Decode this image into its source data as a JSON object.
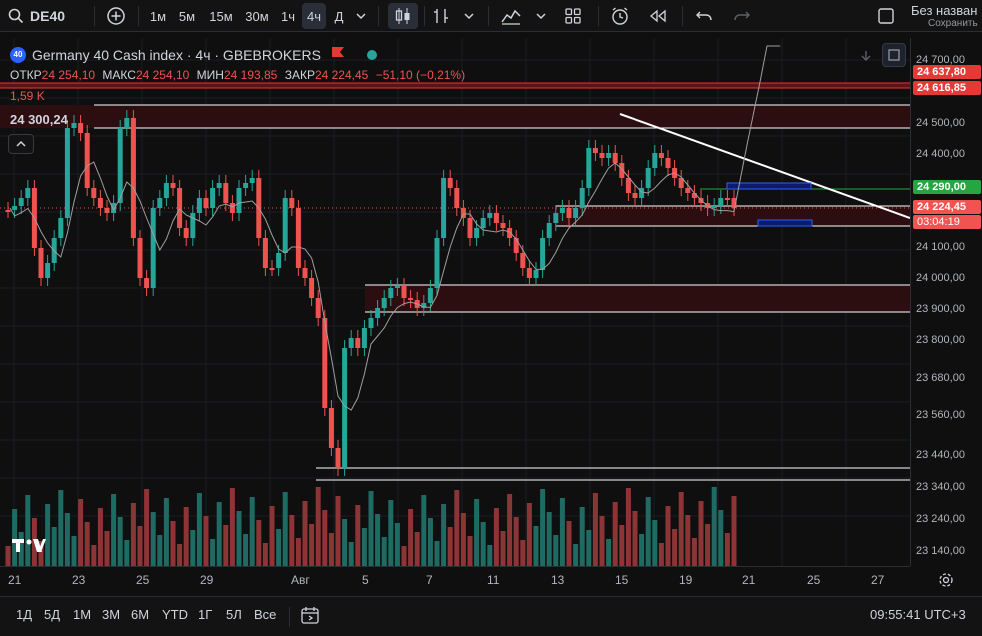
{
  "toolbar": {
    "symbol": "DE40",
    "intervals": [
      "1м",
      "5м",
      "15м",
      "30м",
      "1ч",
      "4ч",
      "Д"
    ],
    "active_interval": "4ч",
    "layout_name": "Без назван",
    "save_label": "Сохранить"
  },
  "legend": {
    "badge": "40",
    "title": "Germany 40 Cash index · 4ч · GBEBROKERS",
    "ohlc": [
      {
        "label": "ОТКР",
        "value": "24 254,10"
      },
      {
        "label": "МАКС",
        "value": "24 254,10"
      },
      {
        "label": "МИН",
        "value": "24 193,85"
      },
      {
        "label": "ЗАКР",
        "value": "24 224,45"
      }
    ],
    "change": "−51,10 (−0,21%)",
    "volume": "1,59 K",
    "crosshair_price": "24 300,24"
  },
  "price_axis": {
    "ticks": [
      "24 700,00",
      "24 500,00",
      "24 400,00",
      "24 100,00",
      "24 000,00",
      "23 900,00",
      "23 800,00",
      "23 680,00",
      "23 560,00",
      "23 440,00",
      "23 340,00",
      "23 240,00",
      "23 140,00"
    ],
    "tags": [
      {
        "text": "24 637,80",
        "color": "#e53935"
      },
      {
        "text": "24 616,85",
        "color": "#e53935"
      },
      {
        "text": "24 290,00",
        "color": "#26a641"
      },
      {
        "text": "24 224,45",
        "color": "#f05350"
      },
      {
        "text": "03:04:19",
        "color": "#f05350"
      }
    ]
  },
  "time_axis": {
    "labels": [
      "21",
      "23",
      "25",
      "29",
      "Авг",
      "5",
      "7",
      "11",
      "13",
      "15",
      "19",
      "21",
      "25",
      "27"
    ]
  },
  "bottom": {
    "ranges": [
      "1Д",
      "5Д",
      "1М",
      "3М",
      "6М",
      "YTD",
      "1Г",
      "5Л",
      "Все"
    ],
    "clock": "09:55:41 UTC+3"
  },
  "colors": {
    "up": "#26a69a",
    "down": "#ef5350",
    "vol_up": "#1f6b63",
    "vol_down": "#8c3436",
    "zone": "#2c0d10"
  }
}
